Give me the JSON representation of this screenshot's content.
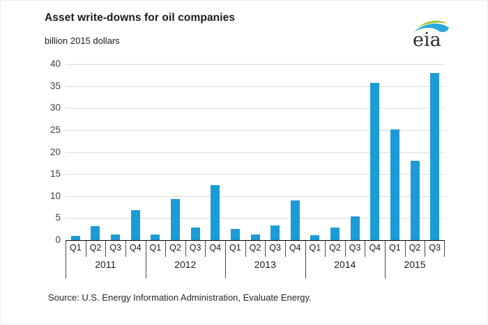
{
  "header": {
    "title": "Asset write-downs for oil companies",
    "subtitle": "billion 2015 dollars",
    "logo_text": "eia"
  },
  "chart_data": {
    "type": "bar",
    "title": "Asset write-downs for oil companies",
    "ylabel": "billion 2015 dollars",
    "xlabel": "",
    "ylim": [
      0,
      40
    ],
    "ytick_step": 5,
    "grid": true,
    "legend_position": "none",
    "bar_color": "#1b9bd7",
    "categories": [
      "Q1",
      "Q2",
      "Q3",
      "Q4",
      "Q1",
      "Q2",
      "Q3",
      "Q4",
      "Q1",
      "Q2",
      "Q3",
      "Q4",
      "Q1",
      "Q2",
      "Q3",
      "Q4",
      "Q1",
      "Q2",
      "Q3"
    ],
    "year_groups": [
      {
        "label": "2011",
        "count": 4
      },
      {
        "label": "2012",
        "count": 4
      },
      {
        "label": "2013",
        "count": 4
      },
      {
        "label": "2014",
        "count": 4
      },
      {
        "label": "2015",
        "count": 3
      }
    ],
    "values": [
      0.9,
      3.2,
      1.2,
      6.8,
      1.3,
      9.4,
      2.9,
      12.5,
      2.5,
      1.3,
      3.4,
      9.0,
      1.1,
      2.9,
      5.4,
      35.7,
      25.2,
      18.0,
      38.0
    ]
  },
  "footer": {
    "source": "Source:  U.S. Energy Information Administration, Evaluate Energy."
  }
}
